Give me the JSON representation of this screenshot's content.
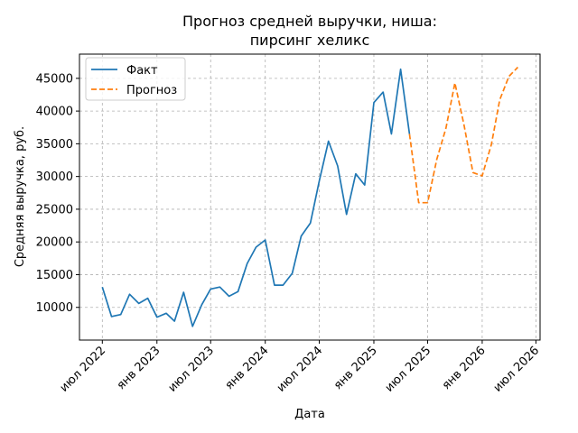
{
  "chart_data": {
    "type": "line",
    "title": [
      "Прогноз средней выручки, ниша:",
      "пирсинг хеликс"
    ],
    "xlabel": "Дата",
    "ylabel": "Средняя выручка, руб.",
    "x_ticks": [
      "2022-07",
      "2023-01",
      "2023-07",
      "2024-01",
      "2024-07",
      "2025-01",
      "2025-07",
      "2026-01",
      "2026-07"
    ],
    "x_tick_labels": [
      "июл 2022",
      "янв 2023",
      "июл 2023",
      "янв 2024",
      "июл 2024",
      "янв 2025",
      "июл 2025",
      "янв 2026",
      "июл 2026"
    ],
    "y_ticks": [
      10000,
      15000,
      20000,
      25000,
      30000,
      35000,
      40000,
      45000
    ],
    "xlim": [
      "2022-04-15",
      "2026-07-15"
    ],
    "ylim": [
      5000,
      48700
    ],
    "grid": true,
    "legend_position": "top-left",
    "series": [
      {
        "name": "Факт",
        "color": "#1f77b4",
        "style": "solid",
        "x": [
          "2022-07",
          "2022-08",
          "2022-09",
          "2022-10",
          "2022-11",
          "2022-12",
          "2023-01",
          "2023-02",
          "2023-03",
          "2023-04",
          "2023-05",
          "2023-06",
          "2023-07",
          "2023-08",
          "2023-09",
          "2023-10",
          "2023-11",
          "2023-12",
          "2024-01",
          "2024-02",
          "2024-03",
          "2024-04",
          "2024-05",
          "2024-06",
          "2024-07",
          "2024-08",
          "2024-09",
          "2024-10",
          "2024-11",
          "2024-12",
          "2025-01",
          "2025-02",
          "2025-03",
          "2025-04",
          "2025-05"
        ],
        "values": [
          13100,
          8600,
          8900,
          12000,
          10600,
          11400,
          8500,
          9100,
          7900,
          12300,
          7100,
          10400,
          12800,
          13100,
          11700,
          12400,
          16700,
          19200,
          20300,
          13400,
          13400,
          15200,
          20900,
          22900,
          29300,
          35400,
          31600,
          24200,
          30400,
          28700,
          41300,
          42900,
          36500,
          46400,
          36500
        ]
      },
      {
        "name": "Прогноз",
        "color": "#ff7f0e",
        "style": "dashed",
        "x": [
          "2025-05",
          "2025-06",
          "2025-07",
          "2025-08",
          "2025-09",
          "2025-10",
          "2025-11",
          "2025-12",
          "2026-01",
          "2026-02",
          "2026-03",
          "2026-04",
          "2026-05"
        ],
        "values": [
          36500,
          26000,
          26000,
          32600,
          37400,
          44300,
          37800,
          30600,
          30100,
          34900,
          41700,
          45300,
          46700
        ]
      }
    ]
  }
}
